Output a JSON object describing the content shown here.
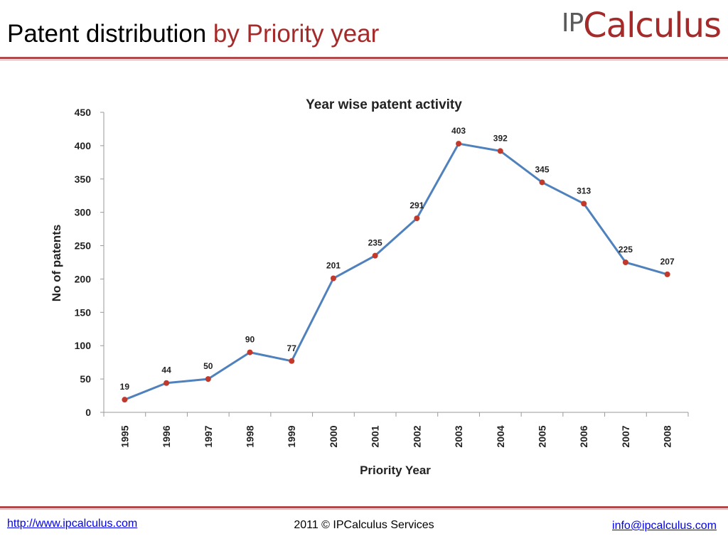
{
  "slide": {
    "title_main": "Patent distribution",
    "title_accent": "by Priority year",
    "logo_ip": "IP",
    "logo_rest": "Calculus"
  },
  "footer": {
    "left_link": "http://www.ipcalculus.com",
    "center": "2011 © IPCalculus Services",
    "right_link": "info@ipcalculus.com"
  },
  "colors": {
    "line": "#4f81bd",
    "marker": "#c0392b",
    "accent": "#a52a2a"
  },
  "chart_data": {
    "type": "line",
    "title": "Year wise patent activity",
    "xlabel": "Priority Year",
    "ylabel": "No of patents",
    "ylim": [
      0,
      450
    ],
    "yticks": [
      0,
      50,
      100,
      150,
      200,
      250,
      300,
      350,
      400,
      450
    ],
    "grid": false,
    "categories": [
      "1995",
      "1996",
      "1997",
      "1998",
      "1999",
      "2000",
      "2001",
      "2002",
      "2003",
      "2004",
      "2005",
      "2006",
      "2007",
      "2008"
    ],
    "values": [
      19,
      44,
      50,
      90,
      77,
      201,
      235,
      291,
      403,
      392,
      345,
      313,
      225,
      207
    ]
  }
}
